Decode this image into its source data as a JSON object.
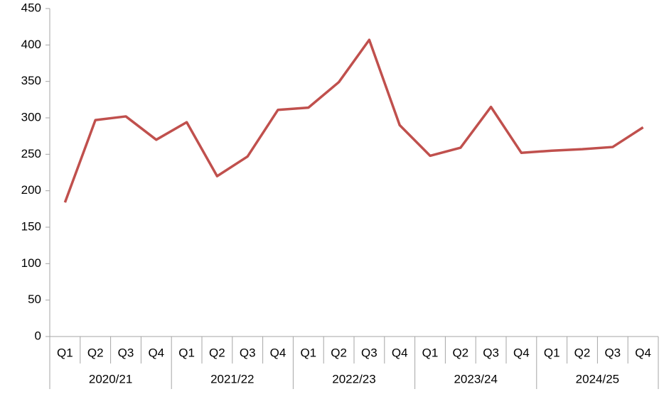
{
  "chart_data": {
    "type": "line",
    "categories": [
      "Q1",
      "Q2",
      "Q3",
      "Q4",
      "Q1",
      "Q2",
      "Q3",
      "Q4",
      "Q1",
      "Q2",
      "Q3",
      "Q4",
      "Q1",
      "Q2",
      "Q3",
      "Q4",
      "Q1",
      "Q2",
      "Q3",
      "Q4"
    ],
    "groups": [
      "2020/21",
      "2021/22",
      "2022/23",
      "2023/24",
      "2024/25"
    ],
    "series": [
      {
        "color": "#c0504d",
        "values": [
          184,
          297,
          302,
          270,
          294,
          220,
          247,
          311,
          314,
          349,
          407,
          290,
          248,
          259,
          315,
          252,
          255,
          257,
          260,
          287
        ]
      }
    ],
    "ylim": [
      0,
      450
    ],
    "yticks": [
      0,
      50,
      100,
      150,
      200,
      250,
      300,
      350,
      400,
      450
    ],
    "grid": false
  }
}
